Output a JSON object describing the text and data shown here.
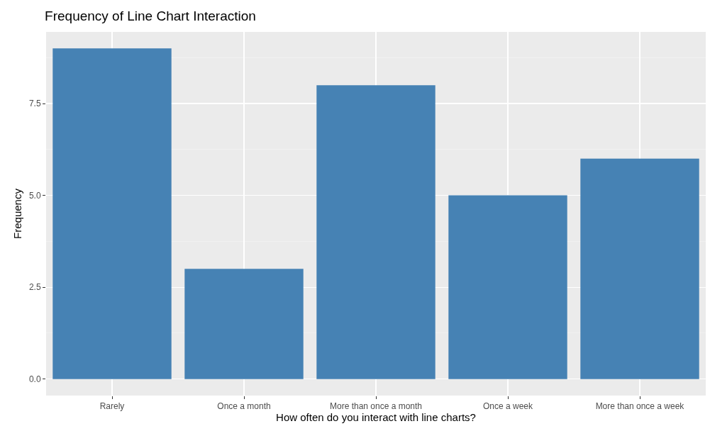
{
  "chart_data": {
    "type": "bar",
    "title": "Frequency of Line Chart Interaction",
    "xlabel": "How often do you interact with line charts?",
    "ylabel": "Frequency",
    "categories": [
      "Rarely",
      "Once a month",
      "More than once a month",
      "Once a week",
      "More than once a week"
    ],
    "values": [
      9,
      3,
      8,
      5,
      6
    ],
    "color": "#4682b4",
    "ylim": [
      -0.45,
      9.45
    ],
    "yticks": [
      {
        "value": 0,
        "label": "0.0"
      },
      {
        "value": 2.5,
        "label": "2.5"
      },
      {
        "value": 5,
        "label": "5.0"
      },
      {
        "value": 7.5,
        "label": "7.5"
      }
    ],
    "grid": true
  }
}
